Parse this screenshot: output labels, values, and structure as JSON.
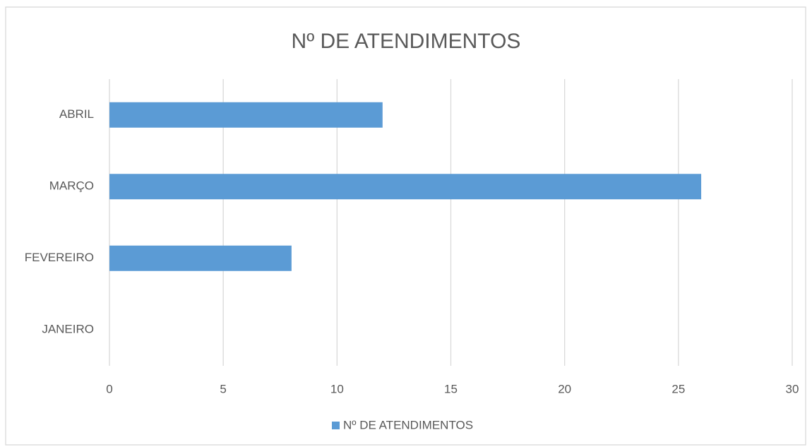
{
  "chart_data": {
    "type": "bar",
    "orientation": "horizontal",
    "title": "Nº DE ATENDIMENTOS",
    "categories": [
      "JANEIRO",
      "FEVEREIRO",
      "MARÇO",
      "ABRIL"
    ],
    "series": [
      {
        "name": "Nº DE ATENDIMENTOS",
        "color": "#5b9bd5",
        "values": [
          0,
          8,
          26,
          12
        ]
      }
    ],
    "xlim": [
      0,
      30
    ],
    "xticks": [
      0,
      5,
      10,
      15,
      20,
      25,
      30
    ],
    "grid": true,
    "legend": "bottom"
  }
}
